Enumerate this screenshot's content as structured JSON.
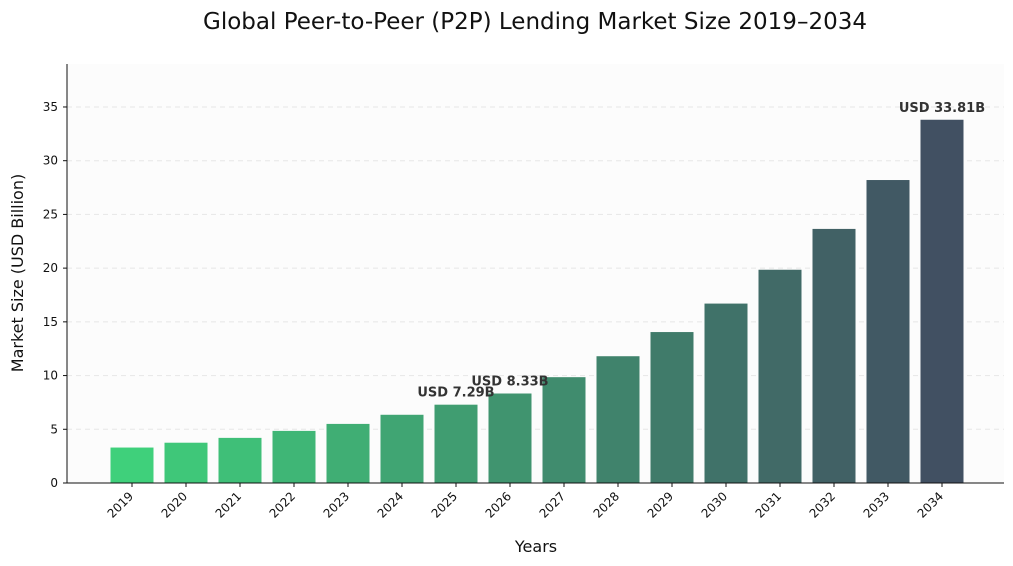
{
  "chart_data": {
    "type": "bar",
    "title": "Global Peer-to-Peer (P2P) Lending Market Size 2019–2034",
    "xlabel": "Years",
    "ylabel": "Market Size (USD Billion)",
    "categories": [
      "2019",
      "2020",
      "2021",
      "2022",
      "2023",
      "2024",
      "2025",
      "2026",
      "2027",
      "2028",
      "2029",
      "2030",
      "2031",
      "2032",
      "2033",
      "2034"
    ],
    "values": [
      3.3,
      3.75,
      4.2,
      4.85,
      5.5,
      6.35,
      7.29,
      8.33,
      9.85,
      11.8,
      14.05,
      16.7,
      19.85,
      23.65,
      28.2,
      33.81
    ],
    "ylim": [
      0,
      39
    ],
    "yticks": [
      0,
      5,
      10,
      15,
      20,
      25,
      30,
      35
    ],
    "grid": "horizontal-dashed",
    "data_labels": [
      {
        "category": "2025",
        "text": "USD 7.29B"
      },
      {
        "category": "2026",
        "text": "USD 8.33B"
      },
      {
        "category": "2034",
        "text": "USD 33.81B"
      }
    ],
    "colors": {
      "start": "#3fd07b",
      "end": "#415062",
      "plot_background": "#fcfcfc",
      "grid": "#e6e6e6"
    }
  }
}
